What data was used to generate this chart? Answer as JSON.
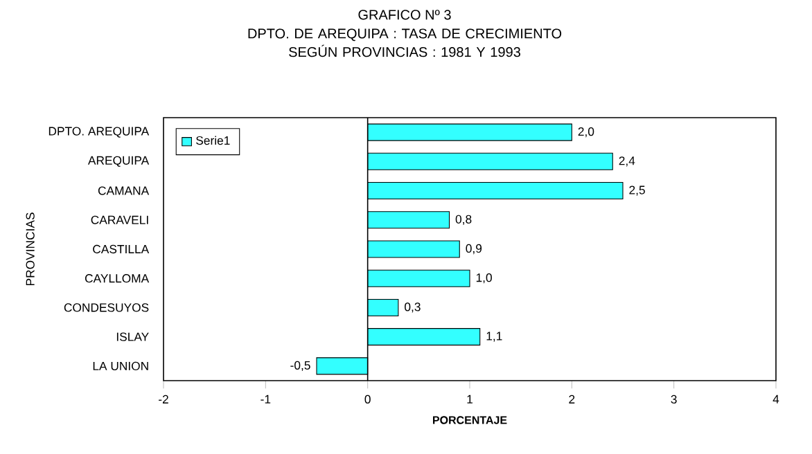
{
  "chart_data": {
    "type": "bar",
    "orientation": "horizontal",
    "title": "GRAFICO Nº 3",
    "subtitle": "DPTO. DE AREQUIPA : TASA DE CRECIMIENTO SEGÚN PROVINCIAS : 1981 Y 1993",
    "xlabel": "PORCENTAJE",
    "ylabel": "PROVINCIAS",
    "categories": [
      "DPTO. AREQUIPA",
      "AREQUIPA",
      "CAMANA",
      "CARAVELI",
      "CASTILLA",
      "CAYLLOMA",
      "CONDESUYOS",
      "ISLAY",
      "LA UNION"
    ],
    "series": [
      {
        "name": "Serie1",
        "color": "#33ffff",
        "values": [
          2.0,
          2.4,
          2.5,
          0.8,
          0.9,
          1.0,
          0.3,
          1.1,
          -0.5
        ],
        "value_labels": [
          "2,0",
          "2,4",
          "2,5",
          "0,8",
          "0,9",
          "1,0",
          "0,3",
          "1,1",
          "-0,5"
        ]
      }
    ],
    "xlim": [
      -2,
      4
    ],
    "xticks": [
      -2,
      -1,
      0,
      1,
      2,
      3,
      4
    ],
    "ref_lines": [
      {
        "axis": "x",
        "value": 0
      }
    ],
    "legend": "top left",
    "grid": false
  }
}
